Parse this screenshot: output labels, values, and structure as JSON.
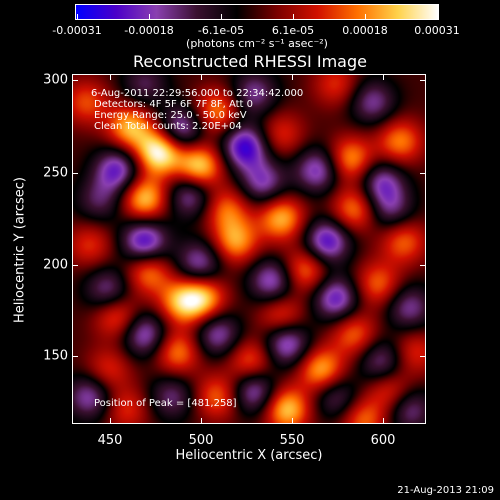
{
  "colorbar": {
    "ticks": [
      "-0.00031",
      "-0.00018",
      "-6.1e-05",
      "6.1e-05",
      "0.00018",
      "0.00031"
    ],
    "units": "(photons cm⁻² s⁻¹ asec⁻²)",
    "colors": [
      "#0000ff",
      "#4b00c8",
      "#8a3fb0",
      "#3a1030",
      "#000000",
      "#7a0000",
      "#d01000",
      "#ff7000",
      "#ffd24a",
      "#ffffff"
    ]
  },
  "title": "Reconstructed RHESSI Image",
  "info": {
    "time": "6-Aug-2011 22:29:56.000 to 22:34:42.000",
    "detectors": "Detectors: 4F 5F 6F 7F 8F, Att 0",
    "energy": "Energy Range: 25.0 - 50.0 keV",
    "clean": "Clean     Total counts: 2.20E+04",
    "peak": "Position of Peak = [481,258]"
  },
  "axes": {
    "xlabel": "Heliocentric X (arcsec)",
    "ylabel": "Heliocentric Y (arcsec)",
    "xticks": [
      "450",
      "500",
      "550",
      "600"
    ],
    "yticks": [
      "300",
      "250",
      "200",
      "150"
    ]
  },
  "timestamp": "21-Aug-2013 21:09",
  "chart_data": {
    "type": "heatmap",
    "title": "Reconstructed RHESSI Image",
    "xlabel": "Heliocentric X (arcsec)",
    "ylabel": "Heliocentric Y (arcsec)",
    "xlim": [
      431,
      624
    ],
    "ylim": [
      110,
      305
    ],
    "zlim": [
      -0.00031,
      0.00031
    ],
    "peak": [
      481,
      258
    ],
    "blobs": [
      {
        "x": 478,
        "y": 262,
        "v": 0.00031
      },
      {
        "x": 500,
        "y": 254,
        "v": 0.00026
      },
      {
        "x": 462,
        "y": 276,
        "v": 0.00022
      },
      {
        "x": 510,
        "y": 285,
        "v": 0.00018
      },
      {
        "x": 545,
        "y": 272,
        "v": 0.00012
      },
      {
        "x": 583,
        "y": 258,
        "v": 0.0002
      },
      {
        "x": 610,
        "y": 268,
        "v": 0.00018
      },
      {
        "x": 470,
        "y": 236,
        "v": 0.00024
      },
      {
        "x": 515,
        "y": 230,
        "v": 0.00016
      },
      {
        "x": 545,
        "y": 225,
        "v": 0.00022
      },
      {
        "x": 585,
        "y": 230,
        "v": 0.00018
      },
      {
        "x": 612,
        "y": 212,
        "v": 0.00016
      },
      {
        "x": 520,
        "y": 212,
        "v": 0.0002
      },
      {
        "x": 558,
        "y": 196,
        "v": 0.00018
      },
      {
        "x": 598,
        "y": 188,
        "v": 0.00016
      },
      {
        "x": 440,
        "y": 210,
        "v": 0.00012
      },
      {
        "x": 472,
        "y": 195,
        "v": 0.00018
      },
      {
        "x": 502,
        "y": 180,
        "v": 0.00022
      },
      {
        "x": 490,
        "y": 178,
        "v": 0.0002
      },
      {
        "x": 545,
        "y": 170,
        "v": 0.00015
      },
      {
        "x": 585,
        "y": 160,
        "v": 0.00016
      },
      {
        "x": 618,
        "y": 150,
        "v": 0.00012
      },
      {
        "x": 455,
        "y": 170,
        "v": 0.00016
      },
      {
        "x": 488,
        "y": 150,
        "v": 0.00018
      },
      {
        "x": 528,
        "y": 145,
        "v": 0.00016
      },
      {
        "x": 567,
        "y": 140,
        "v": 0.00022
      },
      {
        "x": 605,
        "y": 128,
        "v": 0.00014
      },
      {
        "x": 450,
        "y": 140,
        "v": 0.00012
      },
      {
        "x": 510,
        "y": 125,
        "v": 0.00016
      },
      {
        "x": 548,
        "y": 118,
        "v": 0.00024
      },
      {
        "x": 590,
        "y": 112,
        "v": 0.00016
      },
      {
        "x": 460,
        "y": 118,
        "v": 0.00012
      },
      {
        "x": 438,
        "y": 290,
        "v": 0.00014
      },
      {
        "x": 575,
        "y": 300,
        "v": 0.00012
      },
      {
        "x": 455,
        "y": 252,
        "v": -0.00022
      },
      {
        "x": 490,
        "y": 275,
        "v": -0.0002
      },
      {
        "x": 525,
        "y": 265,
        "v": -0.00026
      },
      {
        "x": 565,
        "y": 252,
        "v": -0.0002
      },
      {
        "x": 600,
        "y": 245,
        "v": -0.00018
      },
      {
        "x": 495,
        "y": 238,
        "v": -0.00018
      },
      {
        "x": 470,
        "y": 212,
        "v": -0.00025
      },
      {
        "x": 535,
        "y": 245,
        "v": -0.00018
      },
      {
        "x": 570,
        "y": 212,
        "v": -0.00024
      },
      {
        "x": 605,
        "y": 230,
        "v": -0.00014
      },
      {
        "x": 500,
        "y": 200,
        "v": -0.00018
      },
      {
        "x": 540,
        "y": 190,
        "v": -0.0002
      },
      {
        "x": 575,
        "y": 180,
        "v": -0.00022
      },
      {
        "x": 615,
        "y": 175,
        "v": -0.00016
      },
      {
        "x": 450,
        "y": 185,
        "v": -0.00016
      },
      {
        "x": 470,
        "y": 160,
        "v": -0.0002
      },
      {
        "x": 510,
        "y": 160,
        "v": -0.00018
      },
      {
        "x": 548,
        "y": 155,
        "v": -0.00022
      },
      {
        "x": 600,
        "y": 145,
        "v": -0.00016
      },
      {
        "x": 440,
        "y": 125,
        "v": -0.00018
      },
      {
        "x": 485,
        "y": 125,
        "v": -0.00014
      },
      {
        "x": 530,
        "y": 128,
        "v": -0.0002
      },
      {
        "x": 575,
        "y": 125,
        "v": -0.00014
      },
      {
        "x": 615,
        "y": 118,
        "v": -0.00016
      },
      {
        "x": 445,
        "y": 235,
        "v": -0.00012
      },
      {
        "x": 530,
        "y": 295,
        "v": -0.00016
      },
      {
        "x": 595,
        "y": 290,
        "v": -0.00016
      },
      {
        "x": 470,
        "y": 300,
        "v": -0.00012
      }
    ]
  }
}
